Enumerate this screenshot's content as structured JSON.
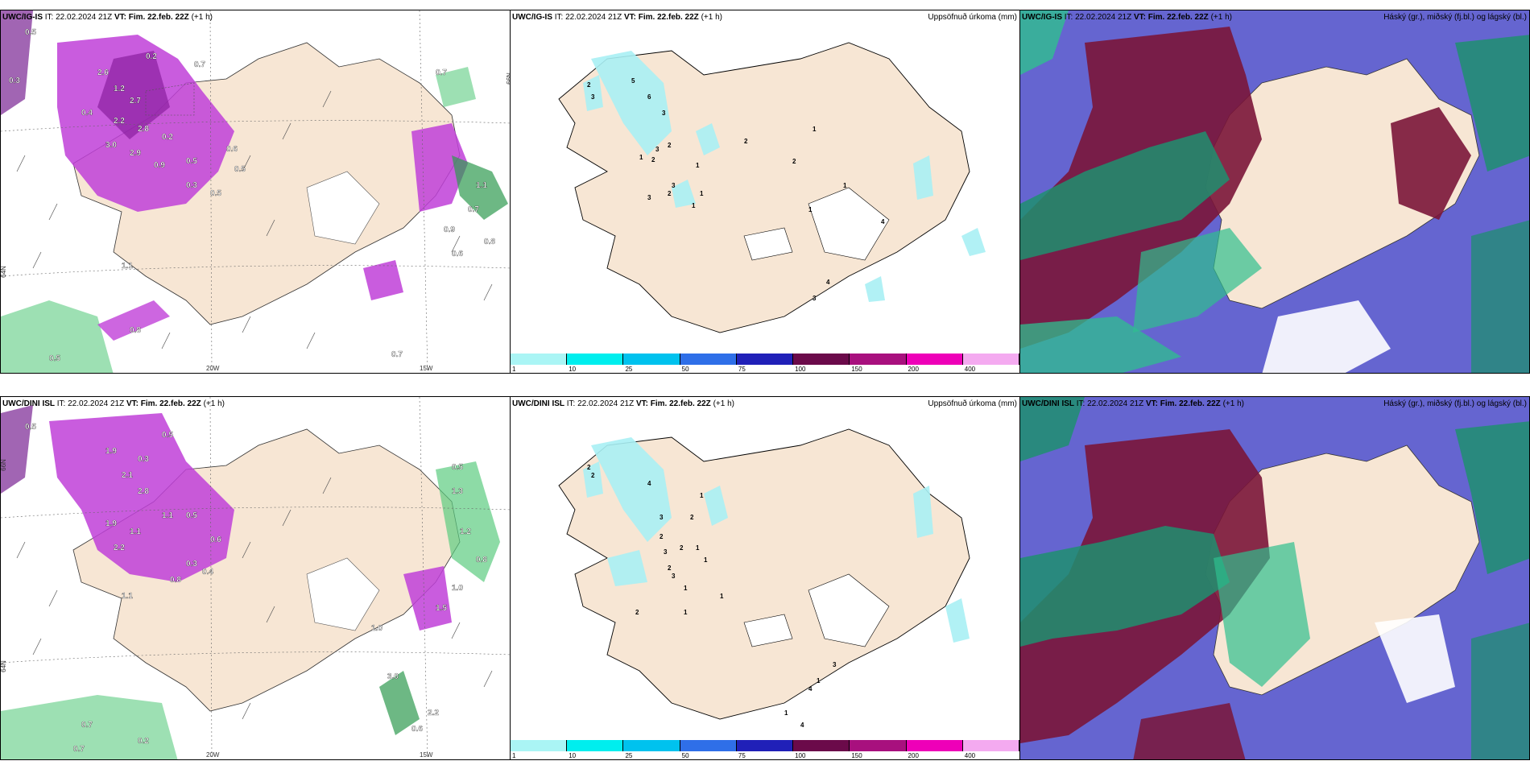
{
  "panels": {
    "p1": {
      "model": "UWC/IG-IS",
      "it": "IT: 22.02.2024 21Z",
      "vt_label": "VT:",
      "vt": "Fim. 22.feb. 22Z",
      "lead": "(+1 h)"
    },
    "p2": {
      "model": "UWC/IG-IS",
      "it": "IT: 22.02.2024 21Z",
      "vt_label": "VT:",
      "vt": "Fim. 22.feb. 22Z",
      "lead": "(+1 h)",
      "right": "Uppsöfnuð úrkoma (mm)"
    },
    "p3": {
      "model": "UWC/IG-IS",
      "it": "IT: 22.02.2024 21Z",
      "vt_label": "VT:",
      "vt": "Fim. 22.feb. 22Z",
      "lead": "(+1 h)",
      "right": "Háský (gr.), miðský (fj.bl.) og lágský (bl.)"
    },
    "p4": {
      "model": "UWC/DINI ISL",
      "it": "IT: 22.02.2024 21Z",
      "vt_label": "VT:",
      "vt": "Fim. 22.feb. 22Z",
      "lead": "(+1 h)"
    },
    "p5": {
      "model": "UWC/DINI ISL",
      "it": "IT: 22.02.2024 21Z",
      "vt_label": "VT:",
      "vt": "Fim. 22.feb. 22Z",
      "lead": "(+1 h)",
      "right": "Uppsöfnuð úrkoma (mm)"
    },
    "p6": {
      "model": "UWC/DINI ISL",
      "it": "IT: 22.02.2024 21Z",
      "vt_label": "VT:",
      "vt": "Fim. 22.feb. 22Z",
      "lead": "(+1 h)",
      "right": "Háský (gr.), miðský (fj.bl.) og lágský (bl.)"
    }
  },
  "axes": {
    "lon_20": "20W",
    "lon_15": "15W",
    "lat_66": "66N",
    "lat_64": "64N"
  },
  "colorbar": {
    "ticks": [
      "1",
      "10",
      "25",
      "50",
      "75",
      "100",
      "150",
      "200",
      "400"
    ],
    "colors": [
      "#aaf5f5",
      "#00eeee",
      "#00c2ee",
      "#2f6fe8",
      "#2020b8",
      "#6b0a4a",
      "#a8107e",
      "#ee00b8",
      "#f4aaf0"
    ]
  },
  "colors": {
    "land": "#f7e6d4",
    "purple_precip": "#c040d8",
    "green_precip": "#5ccc80",
    "cyan_precip": "#a8f0f4",
    "high_cloud": "#7a1538",
    "mid_cloud": "#1f8f70",
    "low_cloud": "#4a4ac8"
  },
  "labels": {
    "p1": [
      "0.5",
      "0.3",
      "0.2",
      "0.7",
      "2.6",
      "1.2",
      "2.7",
      "0.4",
      "2.2",
      "2.8",
      "0.2",
      "3.0",
      "2.9",
      "0.9",
      "0.5",
      "0.6",
      "0.5",
      "0.3",
      "0.5",
      "0.7",
      "1.1",
      "0.7",
      "0.9",
      "0.8",
      "0.6",
      "1.1",
      "0.8",
      "0.5",
      "0.7"
    ],
    "p2": [
      "2",
      "3",
      "5",
      "6",
      "3",
      "2",
      "3",
      "2",
      "1",
      "3",
      "2",
      "2",
      "1",
      "1",
      "3",
      "1",
      "2",
      "1",
      "1",
      "1",
      "4",
      "4",
      "3",
      "1",
      "3"
    ],
    "p4": [
      "0.5",
      "0.5",
      "1.9",
      "0.3",
      "2.1",
      "2.8",
      "1.1",
      "0.5",
      "1.9",
      "1.1",
      "2.2",
      "0.6",
      "0.3",
      "0.8",
      "0.4",
      "1.1",
      "0.5",
      "1.3",
      "1.2",
      "0.8",
      "1.0",
      "1.0",
      "3.0",
      "2.2",
      "0.6",
      "0.7",
      "0.2",
      "0.7",
      "1.5"
    ],
    "p5": [
      "2",
      "2",
      "4",
      "1",
      "2",
      "3",
      "2",
      "2",
      "1",
      "3",
      "1",
      "2",
      "3",
      "1",
      "1",
      "2",
      "1",
      "3",
      "1",
      "4",
      "1",
      "4",
      "3",
      "2",
      "8",
      "2"
    ]
  }
}
